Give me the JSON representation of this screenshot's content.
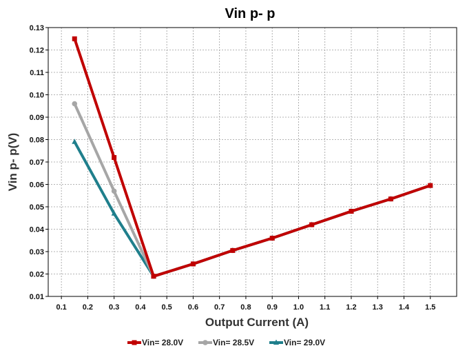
{
  "chart_data": {
    "type": "line",
    "title": "Vin p- p",
    "xlabel": "Output Current (A)",
    "ylabel": "Vin p- p(V)",
    "xlim": [
      0.05,
      1.6
    ],
    "ylim": [
      0.01,
      0.13
    ],
    "x_ticks": [
      "0.1",
      "0.2",
      "0.3",
      "0.4",
      "0.5",
      "0.6",
      "0.7",
      "0.8",
      "0.9",
      "1.0",
      "1.1",
      "1.2",
      "1.3",
      "1.4",
      "1.5"
    ],
    "y_ticks": [
      "0.01",
      "0.02",
      "0.03",
      "0.04",
      "0.05",
      "0.06",
      "0.07",
      "0.08",
      "0.09",
      "0.10",
      "0.11",
      "0.12",
      "0.13"
    ],
    "grid": true,
    "legend_position": "bottom",
    "series": [
      {
        "name": "Vin= 28.0V",
        "color": "#c00000",
        "x": [
          0.15,
          0.3,
          0.45,
          0.6,
          0.75,
          0.9,
          1.05,
          1.2,
          1.35,
          1.5
        ],
        "y": [
          0.125,
          0.072,
          0.019,
          0.0245,
          0.0305,
          0.036,
          0.042,
          0.048,
          0.0535,
          0.0595
        ]
      },
      {
        "name": "Vin= 28.5V",
        "color": "#a6a6a6",
        "x": [
          0.15,
          0.3,
          0.45,
          0.6,
          0.75,
          0.9,
          1.05,
          1.2,
          1.35,
          1.5
        ],
        "y": [
          0.096,
          0.057,
          0.019,
          0.0245,
          0.0305,
          0.036,
          0.042,
          0.048,
          0.0535,
          0.0595
        ]
      },
      {
        "name": "Vin= 29.0V",
        "color": "#1f7f8c",
        "x": [
          0.15,
          0.3,
          0.45,
          0.6,
          0.75,
          0.9,
          1.05,
          1.2,
          1.35,
          1.5
        ],
        "y": [
          0.079,
          0.047,
          0.019,
          0.0245,
          0.0305,
          0.036,
          0.042,
          0.048,
          0.0535,
          0.0595
        ]
      }
    ]
  }
}
